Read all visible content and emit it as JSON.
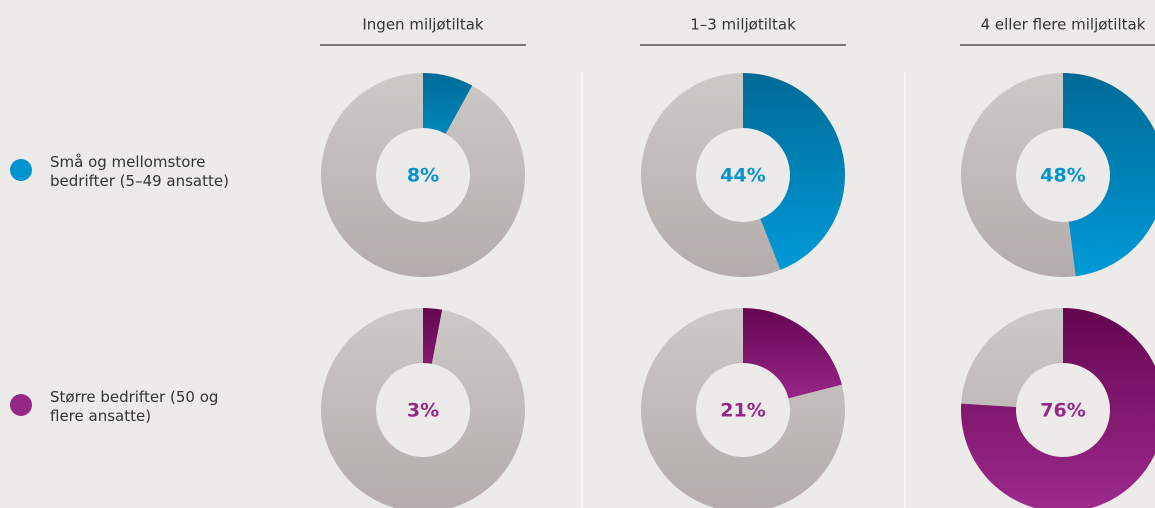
{
  "chart_data": {
    "type": "donut",
    "categories": [
      "Ingen miljøtiltak",
      "1–3 miljøtiltak",
      "4 eller flere miljøtiltak"
    ],
    "series": [
      {
        "name": "Små og mellomstore bedrifter (5–49 ansatte)",
        "color": "#0093d0",
        "values": [
          8,
          44,
          48
        ],
        "value_labels": [
          "8%",
          "44%",
          "48%"
        ]
      },
      {
        "name": "Større bedrifter (50 og flere ansatte)",
        "color": "#952887",
        "values": [
          3,
          21,
          76
        ],
        "value_labels": [
          "3%",
          "21%",
          "76%"
        ]
      }
    ]
  }
}
